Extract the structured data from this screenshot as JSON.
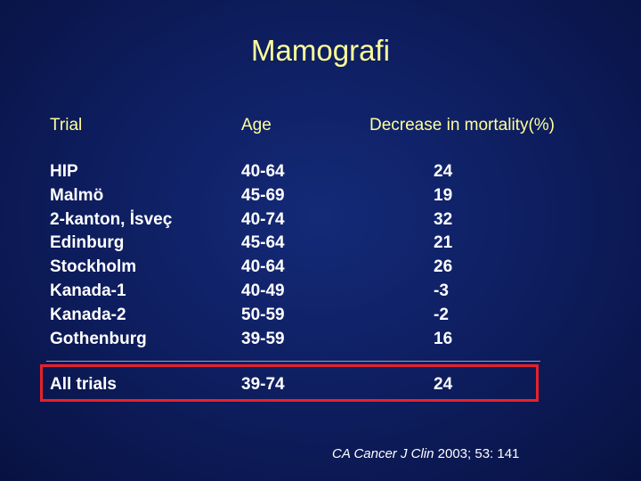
{
  "title": "Mamografi",
  "headers": {
    "trial": "Trial",
    "age": "Age",
    "decrease": "Decrease in mortality(%)"
  },
  "rows": [
    {
      "trial": "HIP",
      "age": "40-64",
      "decrease": "24"
    },
    {
      "trial": "Malmö",
      "age": "45-69",
      "decrease": "19"
    },
    {
      "trial": "2-kanton, İsveç",
      "age": "40-74",
      "decrease": "32"
    },
    {
      "trial": "Edinburg",
      "age": "45-64",
      "decrease": "21"
    },
    {
      "trial": "Stockholm",
      "age": "40-64",
      "decrease": "26"
    },
    {
      "trial": "Kanada-1",
      "age": "40-49",
      "decrease": "-3"
    },
    {
      "trial": "Kanada-2",
      "age": "50-59",
      "decrease": "-2"
    },
    {
      "trial": "Gothenburg",
      "age": "39-59",
      "decrease": "16"
    }
  ],
  "total": {
    "trial": "All trials",
    "age": "39-74",
    "decrease": "24"
  },
  "citation": {
    "journal": "CA Cancer J Clin",
    "ref": " 2003; 53: 141"
  },
  "colors": {
    "background": "#0d1c5c",
    "heading_text": "#ffff99",
    "body_text": "#ffffff",
    "highlight_border": "#e8212b"
  }
}
